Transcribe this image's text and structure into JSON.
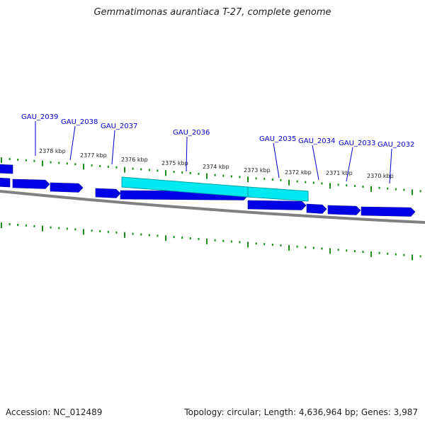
{
  "title": "Gemmatimonas aurantiaca T-27, complete genome",
  "footer": {
    "accession": "Accession: NC_012489",
    "summary": "Topology: circular; Length: 4,636,964 bp; Genes: 3,987"
  },
  "colors": {
    "gene_fill": "#0000e6",
    "gene_highlight": "#00e8f0",
    "gene_label": "#0000cc",
    "tick": "#1a8a1a",
    "backbone": "#808080"
  },
  "gene_labels": [
    "GAU_2039",
    "GAU_2038",
    "GAU_2037",
    "GAU_2036",
    "GAU_2035",
    "GAU_2034",
    "GAU_2033",
    "GAU_2032"
  ],
  "kbp_labels": [
    "2378 kbp",
    "2377 kbp",
    "2376 kbp",
    "2375 kbp",
    "2374 kbp",
    "2373 kbp",
    "2372 kbp",
    "2371 kbp",
    "2370 kbp"
  ]
}
